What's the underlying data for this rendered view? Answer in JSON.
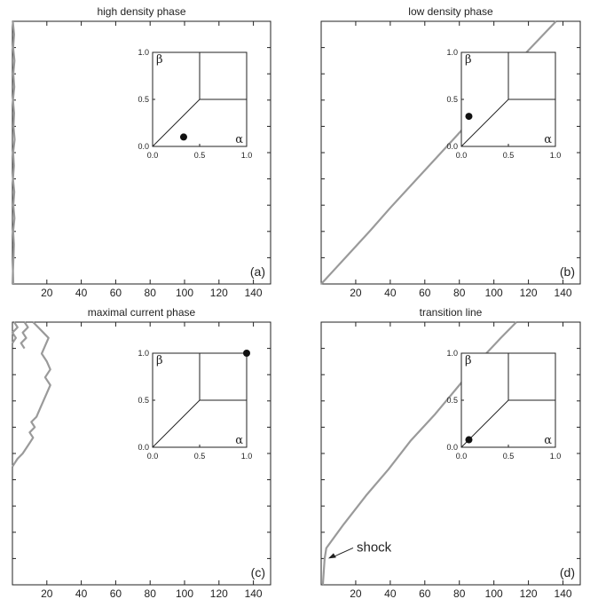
{
  "chart_data": [
    {
      "type": "line",
      "title": "high density phase",
      "panel_label": "(a)",
      "xlim": [
        0,
        150
      ],
      "x_ticks": [
        20,
        40,
        60,
        80,
        100,
        120,
        140
      ],
      "y_minor_ticks": 9,
      "trajectory": [
        [
          0.2,
          0
        ],
        [
          1.0,
          0.05
        ],
        [
          0.4,
          0.1
        ],
        [
          1.2,
          0.15
        ],
        [
          0.5,
          0.2
        ],
        [
          1.1,
          0.25
        ],
        [
          0.3,
          0.3
        ],
        [
          1.0,
          0.35
        ],
        [
          0.6,
          0.4
        ],
        [
          1.3,
          0.45
        ],
        [
          0.4,
          0.5
        ],
        [
          0.9,
          0.55
        ],
        [
          0.3,
          0.6
        ],
        [
          1.1,
          0.65
        ],
        [
          0.5,
          0.7
        ],
        [
          1.2,
          0.75
        ],
        [
          0.4,
          0.8
        ],
        [
          0.9,
          0.85
        ],
        [
          0.6,
          0.9
        ],
        [
          0.3,
          0.95
        ],
        [
          0.5,
          1
        ]
      ],
      "inset": {
        "alpha": 0.33,
        "beta": 0.1,
        "xlabel": "α",
        "ylabel": "β",
        "x_ticks": [
          "0.0",
          "0.5",
          "1.0"
        ],
        "y_ticks": [
          "0.0",
          "0.5",
          "1.0"
        ]
      }
    },
    {
      "type": "line",
      "title": "low density phase",
      "panel_label": "(b)",
      "xlim": [
        0,
        150
      ],
      "x_ticks": [
        20,
        40,
        60,
        80,
        100,
        120,
        140
      ],
      "y_minor_ticks": 9,
      "trajectory": [
        [
          0,
          1.0
        ],
        [
          14,
          0.9
        ],
        [
          28,
          0.8
        ],
        [
          40,
          0.71
        ],
        [
          54,
          0.61
        ],
        [
          68,
          0.51
        ],
        [
          82,
          0.41
        ],
        [
          96,
          0.3
        ],
        [
          108,
          0.2
        ],
        [
          120,
          0.11
        ],
        [
          136,
          0
        ]
      ],
      "inset": {
        "alpha": 0.08,
        "beta": 0.32,
        "xlabel": "α",
        "ylabel": "β",
        "x_ticks": [
          "0.0",
          "0.5",
          "1.0"
        ],
        "y_ticks": [
          "0.0",
          "0.5",
          "1.0"
        ]
      }
    },
    {
      "type": "line",
      "title": "maximal current phase",
      "panel_label": "(c)",
      "xlim": [
        0,
        150
      ],
      "x_ticks": [
        20,
        40,
        60,
        80,
        100,
        120,
        140
      ],
      "y_minor_ticks": 9,
      "trajectory": [
        [
          0,
          0.55
        ],
        [
          3,
          0.52
        ],
        [
          6,
          0.5
        ],
        [
          9,
          0.47
        ],
        [
          12,
          0.44
        ],
        [
          10,
          0.42
        ],
        [
          13,
          0.4
        ],
        [
          11,
          0.38
        ],
        [
          14,
          0.36
        ],
        [
          16,
          0.33
        ],
        [
          18,
          0.3
        ],
        [
          20,
          0.27
        ],
        [
          22,
          0.24
        ],
        [
          19,
          0.21
        ],
        [
          22,
          0.18
        ],
        [
          20,
          0.15
        ],
        [
          17,
          0.12
        ],
        [
          19,
          0.09
        ],
        [
          21,
          0.06
        ],
        [
          18,
          0.04
        ],
        [
          15,
          0.02
        ],
        [
          12,
          0
        ]
      ],
      "trajectory2": [
        [
          0,
          0.08
        ],
        [
          2,
          0.06
        ],
        [
          0,
          0.04
        ],
        [
          3,
          0.02
        ],
        [
          1,
          0
        ]
      ],
      "trajectory3": [
        [
          7,
          0.1
        ],
        [
          5,
          0.08
        ],
        [
          8,
          0.06
        ],
        [
          6,
          0.04
        ],
        [
          9,
          0.02
        ],
        [
          7,
          0
        ]
      ],
      "inset": {
        "alpha": 1.0,
        "beta": 1.0,
        "xlabel": "α",
        "ylabel": "β",
        "x_ticks": [
          "0.0",
          "0.5",
          "1.0"
        ],
        "y_ticks": [
          "0.0",
          "0.5",
          "1.0"
        ]
      }
    },
    {
      "type": "line",
      "title": "transition line",
      "panel_label": "(d)",
      "xlim": [
        0,
        150
      ],
      "x_ticks": [
        20,
        40,
        60,
        80,
        100,
        120,
        140
      ],
      "y_minor_ticks": 9,
      "trajectory": [
        [
          1,
          1.0
        ],
        [
          1.5,
          0.95
        ],
        [
          2,
          0.9
        ],
        [
          3,
          0.86
        ],
        [
          13,
          0.77
        ],
        [
          26,
          0.66
        ],
        [
          39,
          0.56
        ],
        [
          52,
          0.45
        ],
        [
          66,
          0.35
        ],
        [
          80,
          0.24
        ],
        [
          94,
          0.13
        ],
        [
          104,
          0.06
        ],
        [
          113,
          0
        ]
      ],
      "annotation": "shock",
      "inset": {
        "alpha": 0.08,
        "beta": 0.08,
        "xlabel": "α",
        "ylabel": "β",
        "x_ticks": [
          "0.0",
          "0.5",
          "1.0"
        ],
        "y_ticks": [
          "0.0",
          "0.5",
          "1.0"
        ]
      }
    }
  ]
}
